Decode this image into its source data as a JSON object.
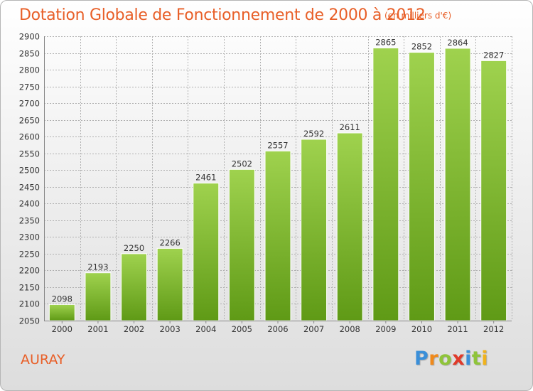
{
  "title": "Dotation Globale de Fonctionnement de 2000 à 2012",
  "unit_note": "(en milliers d'€)",
  "location": "AURAY",
  "logo": {
    "letters": [
      "P",
      "r",
      "o",
      "x",
      "i",
      "t",
      "i"
    ],
    "colors": [
      "#3a8fd9",
      "#f08a1c",
      "#8fc43a",
      "#e03a2a",
      "#3a8fd9",
      "#8fc43a",
      "#f0b21c"
    ]
  },
  "colors": {
    "accent": "#e85f28",
    "bar_top": "#9fd24e",
    "bar_bottom": "#5f9a16",
    "grid": "#b0b0b0"
  },
  "chart_data": {
    "type": "bar",
    "title": "Dotation Globale de Fonctionnement de 2000 à 2012",
    "subtitle": "(en milliers d'€)",
    "xlabel": "",
    "ylabel": "",
    "categories": [
      "2000",
      "2001",
      "2002",
      "2003",
      "2004",
      "2005",
      "2006",
      "2007",
      "2008",
      "2009",
      "2010",
      "2011",
      "2012"
    ],
    "values": [
      2098,
      2193,
      2250,
      2266,
      2461,
      2502,
      2557,
      2592,
      2611,
      2865,
      2852,
      2864,
      2827
    ],
    "ylim": [
      2050,
      2900
    ],
    "yticks": [
      2050,
      2100,
      2150,
      2200,
      2250,
      2300,
      2350,
      2400,
      2450,
      2500,
      2550,
      2600,
      2650,
      2700,
      2750,
      2800,
      2850,
      2900
    ],
    "grid": true,
    "legend": "none",
    "data_labels": true
  }
}
